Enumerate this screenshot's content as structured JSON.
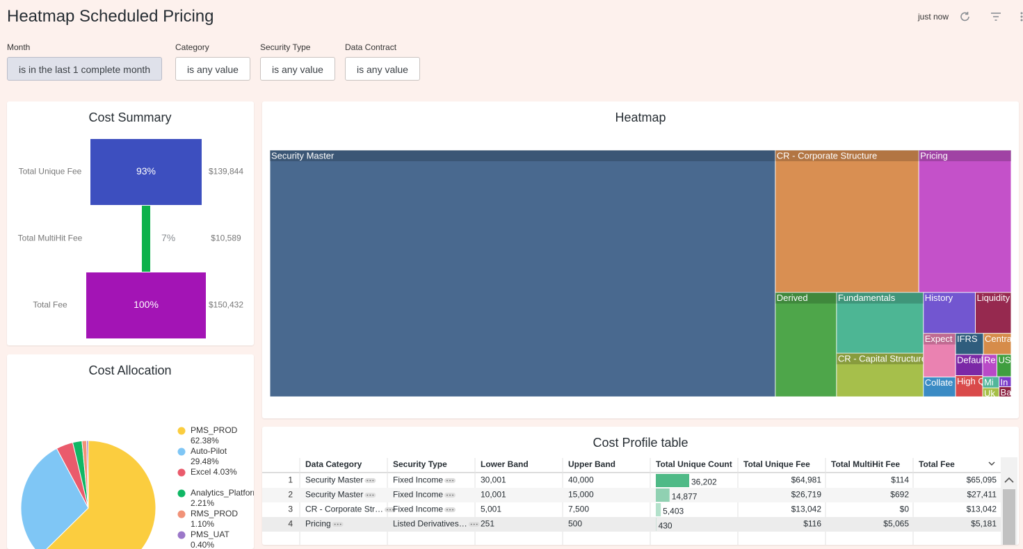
{
  "header": {
    "title": "Heatmap Scheduled Pricing",
    "updated": "just now"
  },
  "filters": [
    {
      "label": "Month",
      "value": "is in the last 1 complete month"
    },
    {
      "label": "Category",
      "value": "is any value"
    },
    {
      "label": "Security Type",
      "value": "is any value"
    },
    {
      "label": "Data Contract",
      "value": "is any value"
    }
  ],
  "cost_summary": {
    "title": "Cost Summary",
    "labels": [
      "Total Unique Fee",
      "Total MultiHit Fee",
      "Total Fee"
    ],
    "values": [
      93,
      7,
      100
    ],
    "value_labels": [
      "93%",
      "7%",
      "100%"
    ],
    "amounts": [
      139844,
      10589,
      150432
    ],
    "amount_labels": [
      "$139,844",
      "$10,589",
      "$150,432"
    ],
    "colors": [
      "#3d4fbf",
      "#0db14b",
      "#a314b5"
    ]
  },
  "heatmap": {
    "title": "Heatmap",
    "tiles": [
      {
        "name": "Security Master",
        "value": 102000,
        "color": "#49698f"
      },
      {
        "name": "CR - Corporate Structure",
        "value": 16700,
        "color": "#d98f52"
      },
      {
        "name": "Pricing",
        "value": 10760,
        "color": "#c451c9"
      },
      {
        "name": "Derived",
        "value": 5230,
        "color": "#4ea64a"
      },
      {
        "name": "Fundamentals",
        "value": 4320,
        "color": "#4db694"
      },
      {
        "name": "CR - Capital Structure",
        "value": 3100,
        "color": "#a6bf4b"
      },
      {
        "name": "History",
        "value": 1740,
        "color": "#7256d0"
      },
      {
        "name": "Liquidity",
        "value": 1200,
        "color": "#96294f"
      },
      {
        "name": "Expect",
        "value": 1150,
        "color": "#ea82b1"
      },
      {
        "name": "Collate",
        "value": 520,
        "color": "#3b8bc4"
      },
      {
        "name": "IFRS",
        "value": 480,
        "color": "#2f5d7d"
      },
      {
        "name": "Centra",
        "value": 480,
        "color": "#d68c4a"
      },
      {
        "name": "Defaul",
        "value": 470,
        "color": "#7b28a6"
      },
      {
        "name": "High Q",
        "value": 470,
        "color": "#d94a4a"
      },
      {
        "name": "Re",
        "value": 260,
        "color": "#b94ac7"
      },
      {
        "name": "US",
        "value": 260,
        "color": "#3f9e3f"
      },
      {
        "name": "Mi",
        "value": 150,
        "color": "#52b69a"
      },
      {
        "name": "Uk",
        "value": 120,
        "color": "#a5bf46"
      },
      {
        "name": "In",
        "value": 100,
        "color": "#7b3cc9"
      },
      {
        "name": "Ba",
        "value": 100,
        "color": "#8b2040"
      }
    ]
  },
  "cost_allocation": {
    "title": "Cost Allocation",
    "series": [
      {
        "name": "PMS_PROD",
        "value": 62.38,
        "label": "62.38%",
        "color": "#fbcd3f"
      },
      {
        "name": "Auto-Pilot",
        "value": 29.48,
        "label": "29.48%",
        "color": "#7fc6f5"
      },
      {
        "name": "Excel 4.03%",
        "value": 4.03,
        "color": "#ea5b6c"
      },
      {
        "name": "Analytics_Platform",
        "value": 2.21,
        "label": "2.21%",
        "color": "#10b765"
      },
      {
        "name": "RMS_PROD",
        "value": 1.1,
        "label": "1.10%",
        "color": "#f19278"
      },
      {
        "name": "PMS_UAT",
        "value": 0.4,
        "label": "0.40%",
        "color": "#9b77c9"
      }
    ]
  },
  "cost_profile_table": {
    "title": "Cost Profile table",
    "columns": [
      "Data Category",
      "Security Type",
      "Lower Band",
      "Upper Band",
      "Total Unique Count",
      "Total Unique Fee",
      "Total MultiHit Fee",
      "Total Fee"
    ],
    "rows": [
      [
        "1",
        "Security Master",
        "Fixed Income",
        "30,001",
        "40,000",
        "36,202",
        "$64,981",
        "$114",
        "$65,095"
      ],
      [
        "2",
        "Security Master",
        "Fixed Income",
        "10,001",
        "15,000",
        "14,877",
        "$26,719",
        "$692",
        "$27,411"
      ],
      [
        "3",
        "CR - Corporate Str…",
        "Fixed Income",
        "5,001",
        "7,500",
        "5,403",
        "$13,042",
        "$0",
        "$13,042"
      ],
      [
        "4",
        "Pricing",
        "Listed Derivatives…",
        "251",
        "500",
        "430",
        "$116",
        "$5,065",
        "$5,181"
      ]
    ],
    "unique_counts": [
      36202,
      14877,
      5403,
      430
    ]
  }
}
